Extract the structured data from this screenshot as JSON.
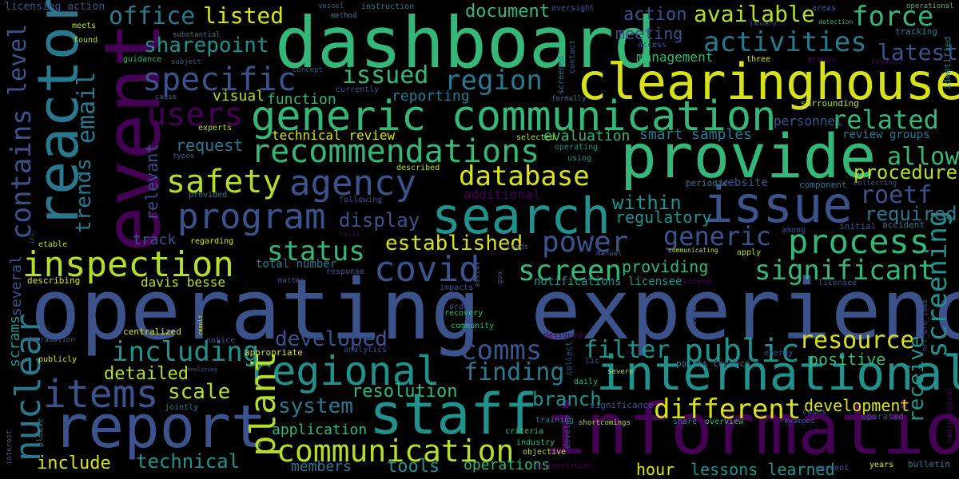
{
  "background": "#000000",
  "words": {
    "operating_experience": "operating experience",
    "dashboard": "dashboard",
    "information": "information",
    "clearinghouse": "clearinghouse",
    "provide": "provide",
    "event": "event",
    "reactor": "reactor",
    "generic_communication": "generic communication",
    "report": "report",
    "staff": "staff",
    "search": "search",
    "issue": "issue",
    "international": "international",
    "recommendations": "recommendations",
    "inspection": "inspection",
    "program": "program",
    "agency": "agency",
    "safety": "safety",
    "regional": "regional",
    "covid": "covid",
    "items": "items",
    "nuclear": "nuclear",
    "plant": "plant",
    "communication": "communication",
    "process": "process",
    "screening": "screening",
    "different": "different",
    "public": "public",
    "significant": "significant",
    "status": "status",
    "screen": "screen",
    "power": "power",
    "database": "database",
    "region": "region",
    "specific": "specific",
    "users": "users",
    "activities": "activities",
    "office": "office",
    "force": "force",
    "contains": "contains",
    "level": "level",
    "email": "email",
    "trends": "trends",
    "including": "including",
    "resource": "resource",
    "comms": "comms",
    "finding": "finding",
    "related": "related",
    "generic": "generic",
    "roetf": "roetf",
    "listed": "listed",
    "available": "available",
    "sharepoint": "sharepoint",
    "issued": "issued",
    "established": "established",
    "developed": "developed",
    "filter": "filter",
    "allow": "allow",
    "receive": "receive",
    "procedures": "procedures",
    "required": "required",
    "latest": "latest",
    "scale": "scale",
    "detailed": "detailed",
    "display": "display",
    "system": "system",
    "resolution": "resolution",
    "branch": "branch",
    "development": "development",
    "document": "document",
    "action": "action",
    "meeting": "meeting",
    "technical": "technical",
    "tools": "tools",
    "operations": "operations",
    "include": "include",
    "hour": "hour",
    "lessons_learned": "lessons learned",
    "within": "within",
    "regulatory": "regulatory",
    "providing": "providing",
    "positive": "positive",
    "application": "application",
    "members": "members",
    "visual": "visual",
    "function": "function",
    "reporting": "reporting",
    "request": "request",
    "relevant": "relevant",
    "smart_samples": "smart samples",
    "evaluation": "evaluation",
    "technical_review": "technical review",
    "personnel": "personnel",
    "review_groups": "review groups",
    "management": "management",
    "track": "track",
    "davis_besse": "davis besse",
    "total_number": "total number",
    "notifications_licensee": "notifications licensee",
    "several": "several",
    "scrams": "scrams",
    "additional": "additional",
    "website": "website",
    "periodic": "periodic",
    "initial": "initial",
    "accident": "accident",
    "among": "among",
    "component": "component",
    "collecting": "collecting",
    "surrounding": "surrounding",
    "identified": "identified",
    "keyword": "keyword",
    "groups": "groups",
    "three": "three",
    "tracking": "tracking",
    "operational": "operational",
    "detection": "detection",
    "areas": "areas",
    "january": "january",
    "access": "access",
    "contact": "contact",
    "screened": "screened",
    "formally": "formally",
    "oversight": "oversight",
    "instruction": "instruction",
    "method": "method",
    "vessel": "vessel",
    "currently": "currently",
    "concept": "concept",
    "subject": "subject",
    "substantial": "substantial",
    "guidance": "guidance",
    "found": "found",
    "meets": "meets",
    "licensing_action": "licensing action",
    "cause": "cause",
    "experts": "experts",
    "types": "types",
    "provided": "provided",
    "etable": "etable",
    "describing": "describing",
    "regarding": "regarding",
    "matter": "matter",
    "response": "response",
    "centralized": "centralized",
    "notice": "notice",
    "result": "result",
    "degradation": "degradation",
    "publicly": "publicly",
    "appropriate": "appropriate",
    "analyzing": "analyzing",
    "analytics": "analytics",
    "jointly": "jointly",
    "interest": "interest",
    "please": "please",
    "designed": "designed",
    "added": "added",
    "order": "order",
    "recovery": "recovery",
    "community": "community",
    "impacts": "impacts",
    "assist": "assist",
    "gov": "gov",
    "leads": "leads",
    "calls": "calls",
    "manual": "manual",
    "communicating": "communicating",
    "apply": "apply",
    "viewed": "viewed",
    "licensee": "licensee",
    "energy": "energy",
    "lic": "lic",
    "collect": "collect",
    "daily": "daily",
    "severe": "severe",
    "significance": "significance",
    "points_contact": "points contact",
    "training": "training",
    "criteria": "criteria",
    "industry": "industry",
    "objective": "objective",
    "implementation": "implementation",
    "develop": "develop",
    "shortcomings": "shortcomings",
    "share": "share",
    "overview": "overview",
    "cases": "cases",
    "revamped": "revamped",
    "operated": "operated",
    "years": "years",
    "bulletin": "bulletin",
    "current": "current",
    "radiological": "radiological",
    "nrr_dro_ioeb": "nrr_dro_ioeb",
    "selected": "selected",
    "operating": "operating",
    "using": "using",
    "described": "described",
    "following": "following",
    "irc": "irc"
  }
}
